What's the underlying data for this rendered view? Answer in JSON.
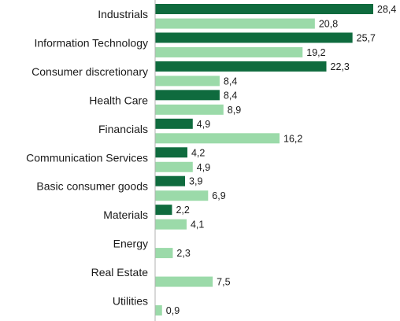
{
  "chart_data": {
    "type": "bar",
    "orientation": "horizontal",
    "categories": [
      "Industrials",
      "Information Technology",
      "Consumer discretionary",
      "Health Care",
      "Financials",
      "Communication Services",
      "Basic consumer goods",
      "Materials",
      "Energy",
      "Real Estate",
      "Utilities"
    ],
    "series": [
      {
        "values": [
          28.4,
          25.7,
          22.3,
          8.4,
          4.9,
          4.2,
          3.9,
          2.2,
          null,
          null,
          null
        ],
        "labels": [
          "28,4",
          "25,7",
          "22,3",
          "8,4",
          "4,9",
          "4,2",
          "3,9",
          "2,2",
          "",
          "",
          ""
        ],
        "color": "#0f6b3e"
      },
      {
        "values": [
          20.8,
          19.2,
          8.4,
          8.9,
          16.2,
          4.9,
          6.9,
          4.1,
          2.3,
          7.5,
          0.9
        ],
        "labels": [
          "20,8",
          "19,2",
          "8,4",
          "8,9",
          "16,2",
          "4,9",
          "6,9",
          "4,1",
          "2,3",
          "7,5",
          "0,9"
        ],
        "color": "#9bdaa9"
      }
    ],
    "xlim": [
      0,
      28.4
    ],
    "grid": false,
    "legend": "none",
    "title": "",
    "xlabel": "",
    "ylabel": ""
  }
}
